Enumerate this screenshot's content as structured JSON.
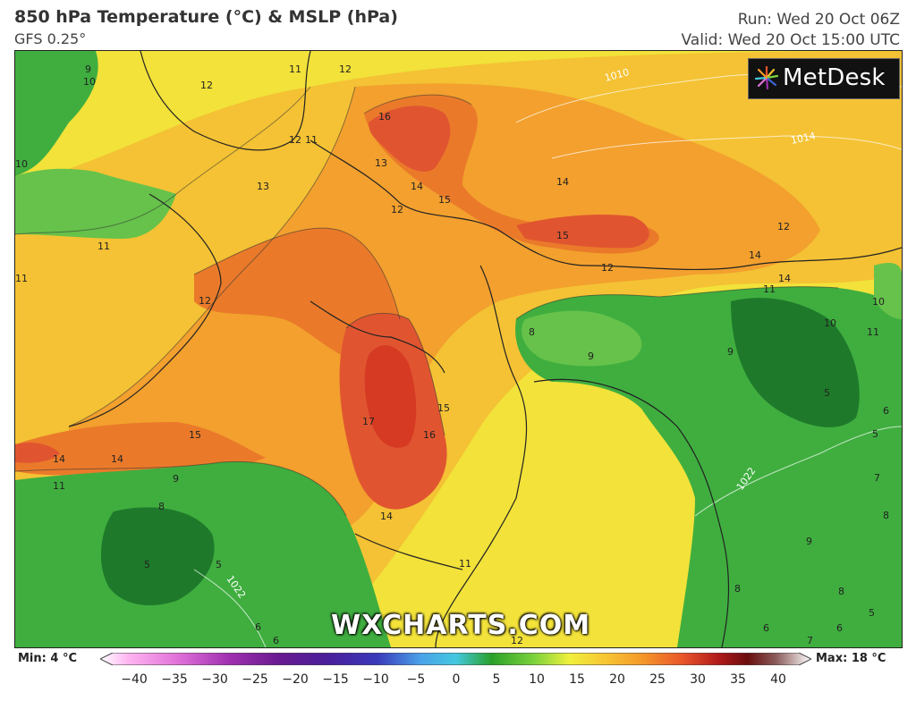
{
  "header": {
    "title": "850 hPa Temperature (°C) & MSLP (hPa)",
    "model": "GFS 0.25°",
    "run": "Run: Wed 20 Oct 06Z",
    "valid": "Valid: Wed 20 Oct 15:00 UTC"
  },
  "logo": {
    "text": "MetDesk",
    "icon": "sunburst-logo-icon"
  },
  "watermark": "WXCHARTS.COM",
  "legend": {
    "min": "Min: 4 °C",
    "max": "Max: 18 °C",
    "ticks": [
      "−40",
      "−35",
      "−30",
      "−25",
      "−20",
      "−15",
      "−10",
      "−5",
      "0",
      "5",
      "10",
      "15",
      "20",
      "25",
      "30",
      "35",
      "40"
    ],
    "colors": [
      "#ffb4f0",
      "#e070d8",
      "#a030b0",
      "#6a1a90",
      "#4a1e9a",
      "#3a3aba",
      "#3c64d8",
      "#4aa0e8",
      "#44c8e0",
      "#2aa02a",
      "#7cd23c",
      "#f0f03c",
      "#f7c634",
      "#f59a2a",
      "#e8542a",
      "#b01a1a",
      "#6a0e0e",
      "#8a5a5a",
      "#c8c8c8",
      "#ffffff"
    ]
  },
  "map_labels": {
    "isotherms": [
      "9",
      "10",
      "12",
      "11",
      "12",
      "12",
      "11",
      "16",
      "13",
      "13",
      "14",
      "15",
      "12",
      "14",
      "15",
      "11",
      "12",
      "14",
      "14",
      "11",
      "12",
      "12",
      "8",
      "9",
      "10",
      "10",
      "11",
      "17",
      "15",
      "16",
      "15",
      "14",
      "14",
      "9",
      "8",
      "5",
      "5",
      "14",
      "11",
      "12",
      "5",
      "6",
      "5",
      "7",
      "8",
      "9",
      "8",
      "8",
      "6",
      "6",
      "6",
      "6",
      "7",
      "5",
      "9",
      "11",
      "11",
      "10"
    ],
    "isobars": [
      "1010",
      "1014",
      "1022",
      "1022"
    ]
  },
  "colors": {
    "green": "#3fae3f",
    "light_green": "#66c24a",
    "dark_green": "#1e7a2a",
    "yellow": "#f2e23a",
    "yellow_orange": "#f4c234",
    "orange": "#f3a02e",
    "dark_orange": "#ea7a2a",
    "red_orange": "#e05530",
    "red": "#d63a22"
  }
}
